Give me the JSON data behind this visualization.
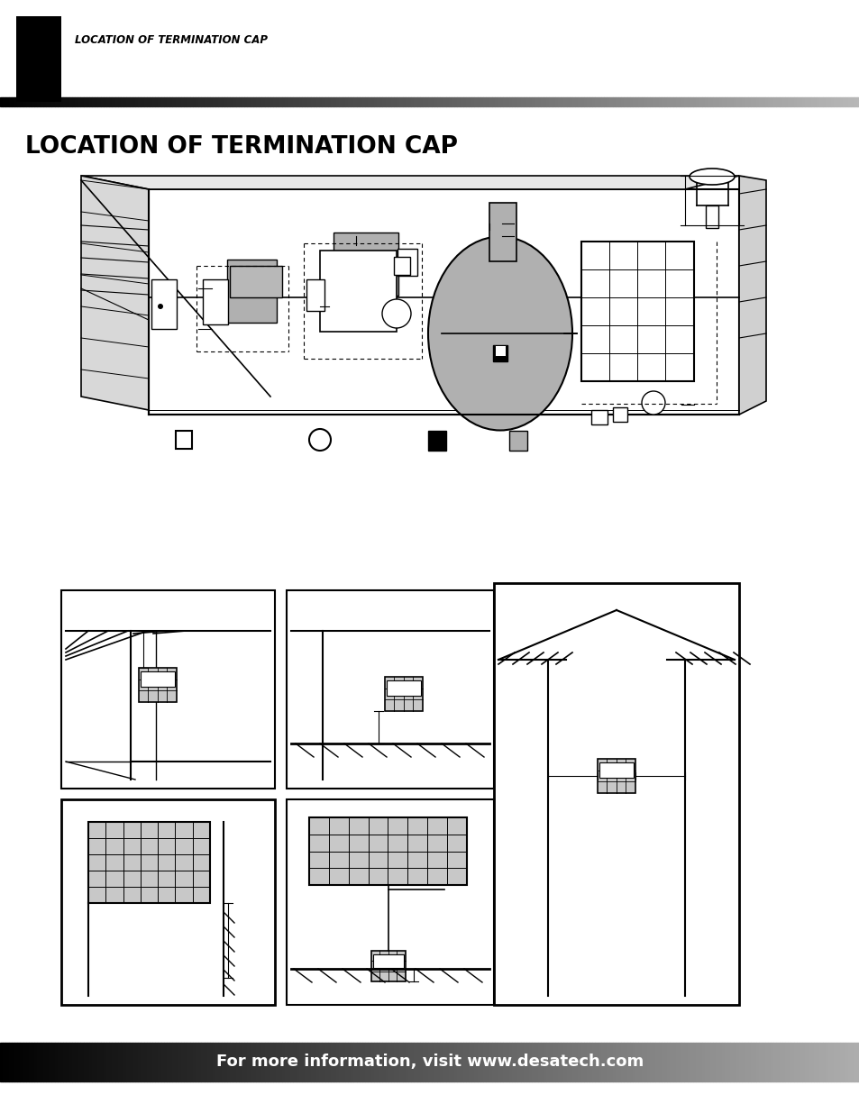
{
  "page_bg": "#ffffff",
  "header_text": "LOCATION OF TERMINATION CAP",
  "title_text": "LOCATION OF TERMINATION CAP",
  "footer_text": "For more information, visit www.desatech.com",
  "footer_text_color": "#ffffff",
  "footer_fontsize": 13,
  "gray_fill": "#b0b0b0",
  "light_gray_fill": "#d0d0d0"
}
